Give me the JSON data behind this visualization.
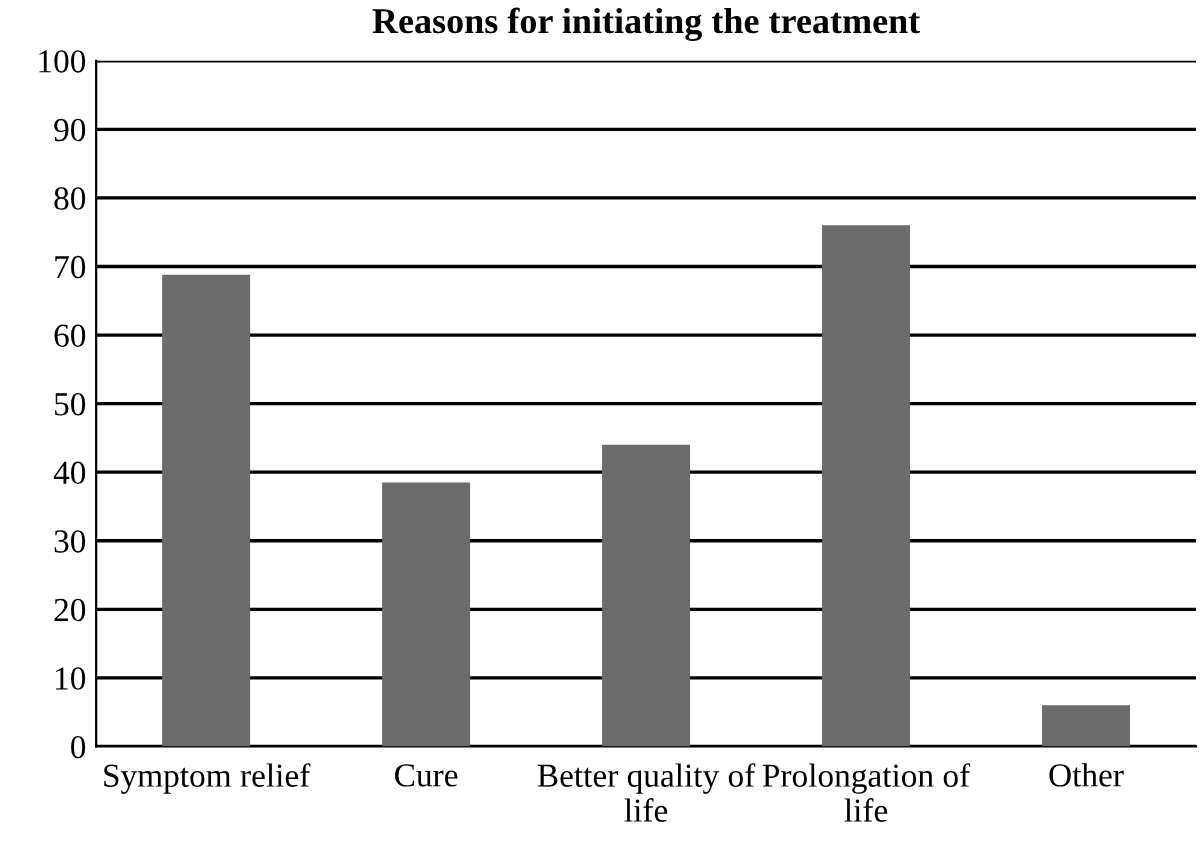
{
  "chart_data": {
    "type": "bar",
    "title": "Reasons for initiating the treatment",
    "categories": [
      "Symptom relief",
      "Cure",
      "Better quality of\nlife",
      "Prolongation of\nlife",
      "Other"
    ],
    "values": [
      68.8,
      38.5,
      44,
      76,
      6
    ],
    "color": "#6b6b6b",
    "ylim": [
      0,
      100
    ],
    "yticks": [
      0,
      10,
      20,
      30,
      40,
      50,
      60,
      70,
      80,
      90,
      100
    ],
    "grid": "y"
  }
}
